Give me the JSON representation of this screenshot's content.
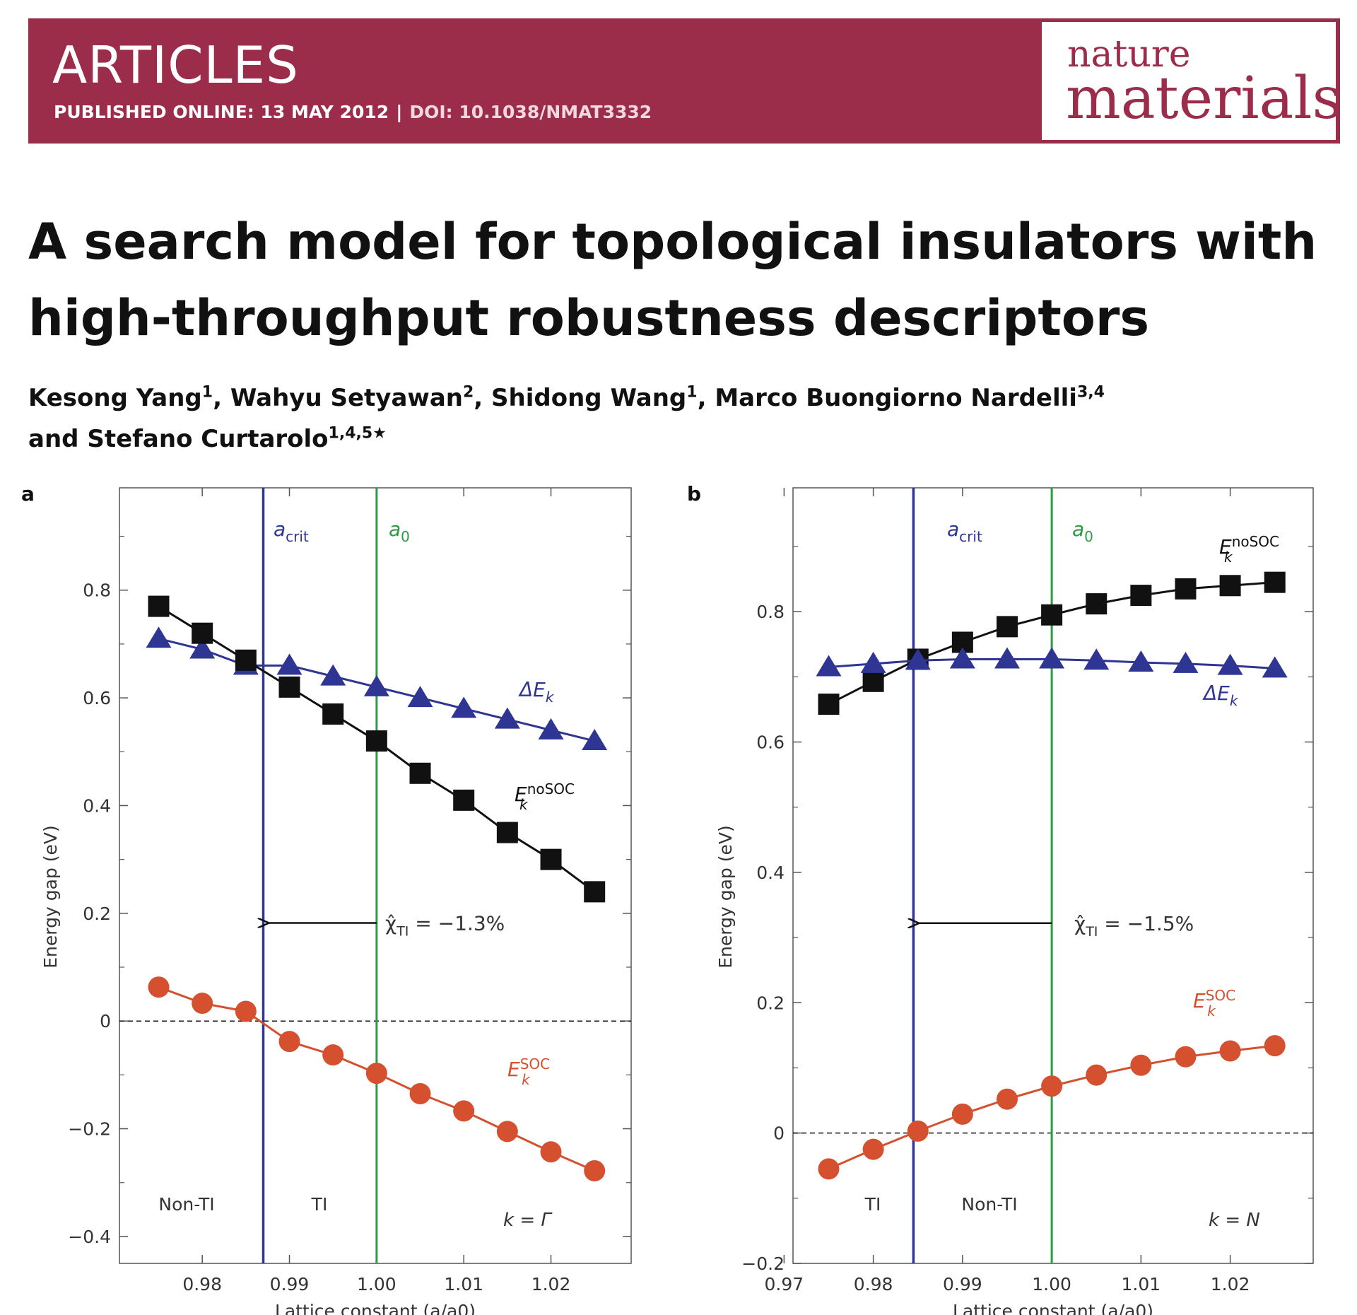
{
  "header": {
    "section": "ARTICLES",
    "published": "PUBLISHED ONLINE: 13 MAY 2012",
    "separator": "|",
    "doi": "DOI: 10.1038/NMAT3332",
    "journal_top": "nature",
    "journal_bottom": "materials"
  },
  "paper": {
    "title": "A search model for topological insulators with high-throughput robustness descriptors",
    "authors": [
      {
        "name": "Kesong Yang",
        "aff": "1"
      },
      {
        "name": "Wahyu Setyawan",
        "aff": "2"
      },
      {
        "name": "Shidong Wang",
        "aff": "1"
      },
      {
        "name": "Marco Buongiorno Nardelli",
        "aff": "3,4"
      },
      {
        "name": "Stefano Curtarolo",
        "aff": "1,4,5★"
      }
    ],
    "author_joiner": "and"
  },
  "colors": {
    "banner": "#9b2d4b",
    "soc": "#d4502f",
    "nosoc": "#111111",
    "delta": "#2e3592",
    "a_crit": "#2e3592",
    "a0": "#2e9a44"
  },
  "chart_data": [
    {
      "panel": "a",
      "type": "line",
      "xlabel": "Lattice constant (a/a0)",
      "ylabel": "Energy gap (eV)",
      "xlim": [
        0.9705,
        1.0292
      ],
      "ylim": [
        -0.45,
        0.99
      ],
      "xticks": [
        0.98,
        0.99,
        1.0,
        1.01,
        1.02
      ],
      "xtick_labels": [
        "0.98",
        "0.99",
        "1.00",
        "1.01",
        "1.02"
      ],
      "yticks": [
        -0.4,
        -0.2,
        0,
        0.2,
        0.4,
        0.6,
        0.8
      ],
      "ytick_labels": [
        "−0.4",
        "−0.2",
        "0",
        "0.2",
        "0.4",
        "0.6",
        "0.8"
      ],
      "x": [
        0.975,
        0.98,
        0.985,
        0.99,
        0.995,
        1.0,
        1.005,
        1.01,
        1.015,
        1.02,
        1.025
      ],
      "series": [
        {
          "name": "ΔE_k",
          "marker": "triangle",
          "values": [
            0.71,
            0.69,
            0.66,
            0.66,
            0.64,
            0.62,
            0.6,
            0.58,
            0.56,
            0.54,
            0.52
          ]
        },
        {
          "name": "E_k^noSOC",
          "marker": "square",
          "values": [
            0.77,
            0.72,
            0.67,
            0.62,
            0.57,
            0.52,
            0.46,
            0.41,
            0.35,
            0.3,
            0.24
          ]
        },
        {
          "name": "E_k^SOC",
          "marker": "circle",
          "values": [
            0.063,
            0.033,
            0.018,
            -0.038,
            -0.063,
            -0.097,
            -0.135,
            -0.167,
            -0.205,
            -0.243,
            -0.278
          ]
        }
      ],
      "labels": {
        "delta": {
          "base": "ΔE",
          "sub": "k"
        },
        "nosoc": {
          "base": "E",
          "sub": "k",
          "sup": "noSOC"
        },
        "soc": {
          "base": "E",
          "sub": "k",
          "sup": "SOC"
        }
      },
      "a_crit": 0.987,
      "a0": 1.0,
      "a_crit_label": {
        "base": "a",
        "sub": "crit"
      },
      "a0_label": {
        "base": "a",
        "sub": "0"
      },
      "arrow_y": 0.182,
      "chi_label": {
        "base": "χ̂",
        "sub": "TI",
        "value": " = −1.3%"
      },
      "region_left": "Non-TI",
      "region_right": "TI",
      "k_label": "k = Γ",
      "zero_line_y": 0
    },
    {
      "panel": "b",
      "type": "line",
      "xlabel": "Lattice constant (a/a0)",
      "ylabel": "Energy gap (eV)",
      "xlim": [
        0.971,
        1.0293
      ],
      "ylim": [
        -0.2,
        0.99
      ],
      "xticks": [
        0.97,
        0.98,
        0.99,
        1.0,
        1.01,
        1.02
      ],
      "xtick_labels": [
        "0.97",
        "0.98",
        "0.99",
        "1.00",
        "1.01",
        "1.02"
      ],
      "yticks": [
        -0.2,
        0,
        0.2,
        0.4,
        0.6,
        0.8
      ],
      "ytick_labels": [
        "−0.2",
        "0",
        "0.2",
        "0.4",
        "0.6",
        "0.8"
      ],
      "x": [
        0.975,
        0.98,
        0.985,
        0.99,
        0.995,
        1.0,
        1.005,
        1.01,
        1.015,
        1.02,
        1.025
      ],
      "series": [
        {
          "name": "E_k^noSOC",
          "marker": "square",
          "values": [
            0.658,
            0.693,
            0.727,
            0.753,
            0.777,
            0.795,
            0.812,
            0.825,
            0.835,
            0.84,
            0.845
          ]
        },
        {
          "name": "ΔE_k",
          "marker": "triangle",
          "values": [
            0.715,
            0.72,
            0.725,
            0.727,
            0.727,
            0.727,
            0.725,
            0.722,
            0.72,
            0.717,
            0.713
          ]
        },
        {
          "name": "E_k^SOC",
          "marker": "circle",
          "values": [
            -0.055,
            -0.025,
            0.003,
            0.029,
            0.052,
            0.072,
            0.089,
            0.104,
            0.117,
            0.126,
            0.134
          ]
        }
      ],
      "labels": {
        "nosoc": {
          "base": "E",
          "sub": "k",
          "sup": "noSOC"
        },
        "delta": {
          "base": "ΔE",
          "sub": "k"
        },
        "soc": {
          "base": "E",
          "sub": "k",
          "sup": "SOC"
        }
      },
      "a_crit": 0.9845,
      "a0": 1.0,
      "a_crit_label": {
        "base": "a",
        "sub": "crit"
      },
      "a0_label": {
        "base": "a",
        "sub": "0"
      },
      "arrow_y": 0.322,
      "chi_label": {
        "base": "χ̂",
        "sub": "TI",
        "value": " = −1.5%"
      },
      "region_left": "TI",
      "region_right": "Non-TI",
      "k_label": "k = N",
      "zero_line_y": 0
    }
  ]
}
